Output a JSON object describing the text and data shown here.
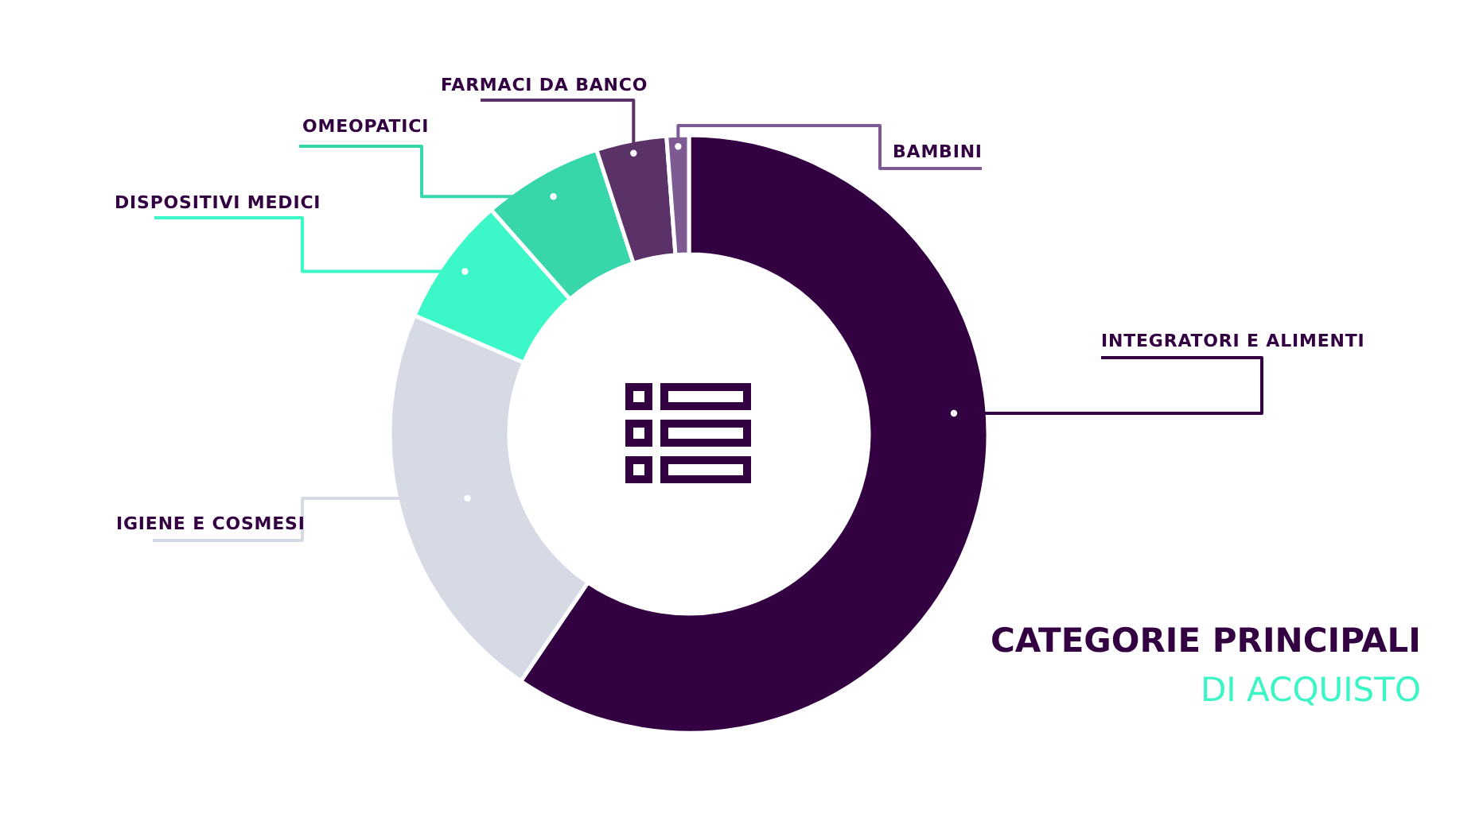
{
  "chart_data": {
    "type": "donut",
    "title": "CATEGORIE PRINCIPALI",
    "subtitle": "DI ACQUISTO",
    "categories": [
      "INTEGRATORI E ALIMENTI",
      "IGIENE E COSMESI",
      "DISPOSITIVI MEDICI",
      "OMEOPATICI",
      "FARMACI DA BANCO",
      "BAMBINI"
    ],
    "values": [
      59.5,
      22,
      7,
      6.5,
      3.8,
      1.2
    ],
    "colors": [
      "#330042",
      "#d5dae5",
      "#3cf7c8",
      "#37d6ab",
      "#5a3268",
      "#7e5a93"
    ]
  }
}
